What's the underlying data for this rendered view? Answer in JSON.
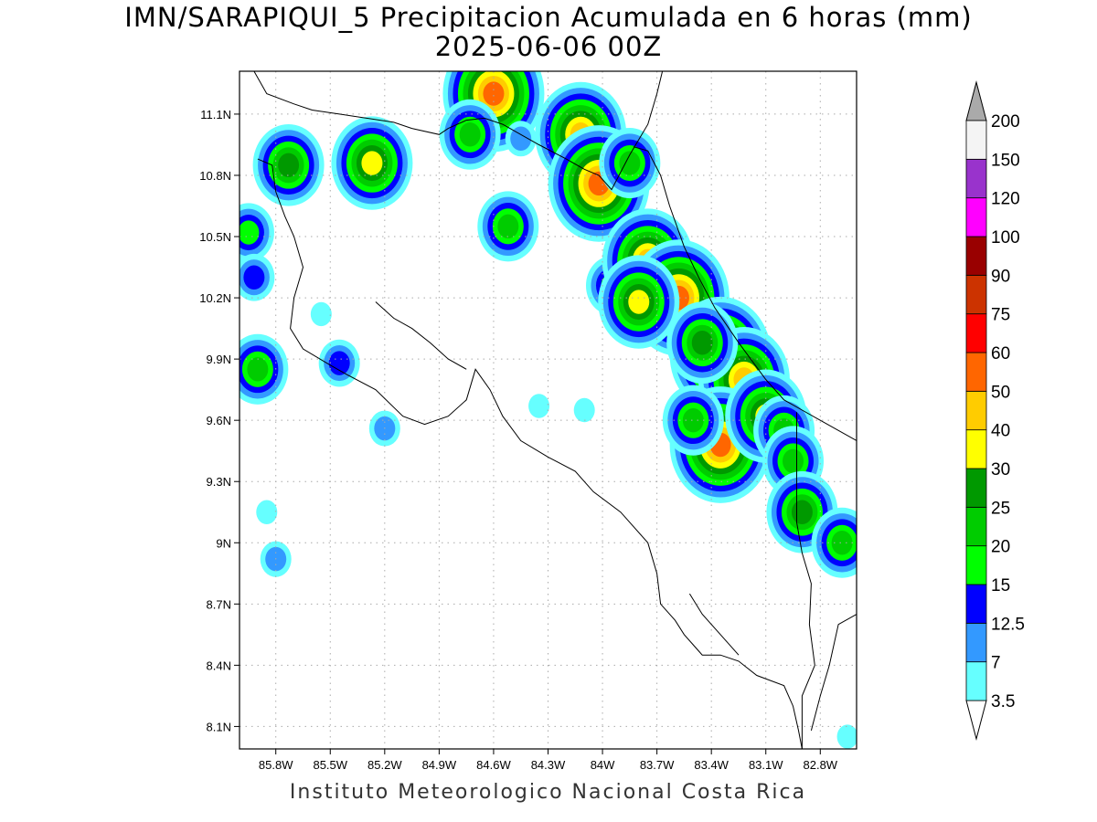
{
  "title": "IMN/SARAPIQUI_5 Precipitacion Acumulada en 6 horas (mm)",
  "subtitle": "2025-06-06 00Z",
  "credit": "Instituto Meteorologico Nacional Costa Rica",
  "map": {
    "lon_range": [
      -86.0,
      -82.6
    ],
    "lat_range": [
      7.99,
      11.31
    ],
    "lat_ticks": [
      {
        "value": 11.1,
        "label": "11.1N"
      },
      {
        "value": 10.8,
        "label": "10.8N"
      },
      {
        "value": 10.5,
        "label": "10.5N"
      },
      {
        "value": 10.2,
        "label": "10.2N"
      },
      {
        "value": 9.9,
        "label": "9.9N"
      },
      {
        "value": 9.6,
        "label": "9.6N"
      },
      {
        "value": 9.3,
        "label": "9.3N"
      },
      {
        "value": 9.0,
        "label": "9N"
      },
      {
        "value": 8.7,
        "label": "8.7N"
      },
      {
        "value": 8.4,
        "label": "8.4N"
      },
      {
        "value": 8.1,
        "label": "8.1N"
      }
    ],
    "lon_ticks": [
      {
        "value": -85.8,
        "label": "85.8W"
      },
      {
        "value": -85.5,
        "label": "85.5W"
      },
      {
        "value": -85.2,
        "label": "85.2W"
      },
      {
        "value": -84.9,
        "label": "84.9W"
      },
      {
        "value": -84.6,
        "label": "84.6W"
      },
      {
        "value": -84.3,
        "label": "84.3W"
      },
      {
        "value": -84.0,
        "label": "84W"
      },
      {
        "value": -83.7,
        "label": "83.7W"
      },
      {
        "value": -83.4,
        "label": "83.4W"
      },
      {
        "value": -83.1,
        "label": "83.1W"
      },
      {
        "value": -82.8,
        "label": "82.8W"
      }
    ],
    "grid": "dotted",
    "coastline": [
      [
        [
          -85.92,
          11.31
        ],
        [
          -85.85,
          11.2
        ],
        [
          -85.7,
          11.15
        ],
        [
          -85.6,
          11.12
        ],
        [
          -85.45,
          11.1
        ],
        [
          -85.3,
          11.08
        ],
        [
          -85.15,
          11.06
        ],
        [
          -85.05,
          11.03
        ],
        [
          -84.9,
          11.0
        ],
        [
          -84.85,
          11.03
        ],
        [
          -84.75,
          11.07
        ],
        [
          -84.65,
          11.08
        ],
        [
          -84.55,
          11.05
        ],
        [
          -84.45,
          11.0
        ],
        [
          -84.35,
          10.95
        ],
        [
          -84.2,
          10.88
        ],
        [
          -84.1,
          10.83
        ],
        [
          -84.02,
          10.8
        ],
        [
          -83.95,
          10.73
        ],
        [
          -83.85,
          10.9
        ],
        [
          -83.75,
          11.05
        ],
        [
          -83.7,
          11.2
        ],
        [
          -83.67,
          11.31
        ]
      ],
      [
        [
          -83.83,
          10.94
        ],
        [
          -83.75,
          10.92
        ],
        [
          -83.68,
          10.8
        ],
        [
          -83.63,
          10.65
        ],
        [
          -83.55,
          10.45
        ],
        [
          -83.47,
          10.3
        ],
        [
          -83.38,
          10.15
        ],
        [
          -83.25,
          9.98
        ],
        [
          -83.1,
          9.8
        ],
        [
          -83.0,
          9.7
        ],
        [
          -82.9,
          9.65
        ],
        [
          -82.8,
          9.6
        ],
        [
          -82.6,
          9.5
        ]
      ],
      [
        [
          -85.9,
          10.88
        ],
        [
          -85.82,
          10.85
        ],
        [
          -85.8,
          10.72
        ],
        [
          -85.75,
          10.6
        ],
        [
          -85.7,
          10.5
        ],
        [
          -85.65,
          10.35
        ],
        [
          -85.7,
          10.2
        ],
        [
          -85.72,
          10.05
        ],
        [
          -85.65,
          9.95
        ],
        [
          -85.5,
          9.87
        ],
        [
          -85.4,
          9.82
        ],
        [
          -85.25,
          9.75
        ],
        [
          -85.1,
          9.62
        ],
        [
          -84.98,
          9.58
        ],
        [
          -84.85,
          9.62
        ],
        [
          -84.75,
          9.7
        ],
        [
          -84.7,
          9.85
        ],
        [
          -84.62,
          9.75
        ],
        [
          -84.55,
          9.62
        ],
        [
          -84.45,
          9.5
        ],
        [
          -84.3,
          9.42
        ],
        [
          -84.15,
          9.35
        ],
        [
          -84.05,
          9.25
        ],
        [
          -83.9,
          9.15
        ],
        [
          -83.75,
          9.0
        ],
        [
          -83.7,
          8.85
        ],
        [
          -83.68,
          8.7
        ],
        [
          -83.6,
          8.62
        ],
        [
          -83.55,
          8.55
        ],
        [
          -83.45,
          8.45
        ],
        [
          -83.35,
          8.45
        ],
        [
          -83.25,
          8.42
        ],
        [
          -83.15,
          8.35
        ],
        [
          -83.0,
          8.3
        ],
        [
          -82.95,
          8.2
        ],
        [
          -82.92,
          8.08
        ],
        [
          -82.9,
          7.99
        ]
      ],
      [
        [
          -85.25,
          10.18
        ],
        [
          -85.15,
          10.1
        ],
        [
          -85.05,
          10.05
        ],
        [
          -84.95,
          9.98
        ],
        [
          -84.85,
          9.9
        ],
        [
          -84.75,
          9.85
        ]
      ],
      [
        [
          -82.85,
          8.08
        ],
        [
          -82.8,
          8.25
        ],
        [
          -82.75,
          8.4
        ],
        [
          -82.7,
          8.6
        ],
        [
          -82.6,
          8.65
        ]
      ],
      [
        [
          -83.52,
          8.75
        ],
        [
          -83.45,
          8.65
        ],
        [
          -83.35,
          8.55
        ],
        [
          -83.25,
          8.45
        ]
      ]
    ],
    "border": [
      [
        -82.93,
        9.64
      ],
      [
        -82.93,
        9.45
      ],
      [
        -82.93,
        9.25
      ],
      [
        -82.93,
        9.1
      ],
      [
        -82.9,
        8.95
      ],
      [
        -82.85,
        8.8
      ],
      [
        -82.86,
        8.6
      ],
      [
        -82.83,
        8.4
      ],
      [
        -82.9,
        8.25
      ],
      [
        -82.9,
        8.1
      ],
      [
        -82.9,
        7.99
      ]
    ]
  },
  "colorbar": {
    "levels": [
      {
        "label": "3.5",
        "color": "#66ffff"
      },
      {
        "label": "7",
        "color": "#3399ff"
      },
      {
        "label": "12.5",
        "color": "#0000ff"
      },
      {
        "label": "15",
        "color": "#00ff00"
      },
      {
        "label": "20",
        "color": "#00cc00"
      },
      {
        "label": "25",
        "color": "#009900"
      },
      {
        "label": "30",
        "color": "#ffff00"
      },
      {
        "label": "40",
        "color": "#ffcc00"
      },
      {
        "label": "50",
        "color": "#ff6600"
      },
      {
        "label": "60",
        "color": "#ff0000"
      },
      {
        "label": "75",
        "color": "#cc3300"
      },
      {
        "label": "90",
        "color": "#990000"
      },
      {
        "label": "100",
        "color": "#ff00ff"
      },
      {
        "label": "120",
        "color": "#9933cc"
      },
      {
        "label": "150",
        "color": "#f4f4f4"
      },
      {
        "label": "200",
        "color": "#aaaaaa"
      }
    ]
  },
  "precip_cells": [
    {
      "lon": -84.6,
      "lat": 11.2,
      "level": 8
    },
    {
      "lon": -84.12,
      "lat": 11.0,
      "level": 7
    },
    {
      "lon": -84.02,
      "lat": 10.76,
      "level": 8
    },
    {
      "lon": -85.27,
      "lat": 10.86,
      "level": 6
    },
    {
      "lon": -85.73,
      "lat": 10.85,
      "level": 5
    },
    {
      "lon": -84.73,
      "lat": 11.0,
      "level": 4
    },
    {
      "lon": -83.85,
      "lat": 10.86,
      "level": 4
    },
    {
      "lon": -84.52,
      "lat": 10.55,
      "level": 4
    },
    {
      "lon": -83.95,
      "lat": 10.26,
      "level": 3
    },
    {
      "lon": -83.75,
      "lat": 10.38,
      "level": 7
    },
    {
      "lon": -83.58,
      "lat": 10.2,
      "level": 8
    },
    {
      "lon": -83.8,
      "lat": 10.18,
      "level": 6
    },
    {
      "lon": -83.35,
      "lat": 9.92,
      "level": 8
    },
    {
      "lon": -83.22,
      "lat": 9.8,
      "level": 7
    },
    {
      "lon": -83.45,
      "lat": 9.98,
      "level": 5
    },
    {
      "lon": -83.35,
      "lat": 9.48,
      "level": 8
    },
    {
      "lon": -83.1,
      "lat": 9.62,
      "level": 6
    },
    {
      "lon": -83.5,
      "lat": 9.6,
      "level": 4
    },
    {
      "lon": -83.0,
      "lat": 9.55,
      "level": 4
    },
    {
      "lon": -82.95,
      "lat": 9.4,
      "level": 4
    },
    {
      "lon": -82.9,
      "lat": 9.15,
      "level": 5
    },
    {
      "lon": -82.68,
      "lat": 9.0,
      "level": 4
    },
    {
      "lon": -85.9,
      "lat": 9.85,
      "level": 4
    },
    {
      "lon": -85.45,
      "lat": 9.88,
      "level": 2
    },
    {
      "lon": -85.2,
      "lat": 9.56,
      "level": 1
    },
    {
      "lon": -85.95,
      "lat": 10.52,
      "level": 3
    },
    {
      "lon": -85.92,
      "lat": 10.3,
      "level": 2
    },
    {
      "lon": -85.8,
      "lat": 8.92,
      "level": 1
    },
    {
      "lon": -85.85,
      "lat": 9.15,
      "level": 0
    },
    {
      "lon": -84.35,
      "lat": 9.67,
      "level": 0
    },
    {
      "lon": -84.1,
      "lat": 9.65,
      "level": 0
    },
    {
      "lon": -85.55,
      "lat": 10.12,
      "level": 0
    },
    {
      "lon": -84.45,
      "lat": 10.98,
      "level": 1
    },
    {
      "lon": -82.65,
      "lat": 8.05,
      "level": 0
    }
  ]
}
